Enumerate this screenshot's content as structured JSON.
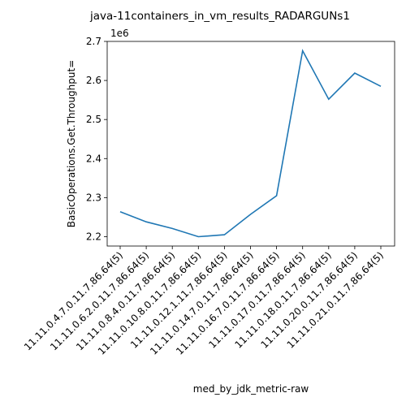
{
  "chart_data": {
    "type": "line",
    "title": "java-11containers_in_vm_results_RADARGUNs1",
    "xlabel": "med_by_jdk_metric-raw",
    "ylabel": "BasicOperations.Get.Throughput=",
    "y_multiplier_label": "1e6",
    "y_scale": 1000000,
    "categories": [
      "11.11.0.4.7.0.11.7.86.64(5)",
      "11.11.0.6.2.0.11.7.86.64(5)",
      "11.11.0.8.4.0.11.7.86.64(5)",
      "11.11.0.10.8.0.11.7.86.64(5)",
      "11.11.0.12.1.11.7.86.64(5)",
      "11.11.0.14.7.0.11.7.86.64(5)",
      "11.11.0.16.7.0.11.7.86.64(5)",
      "11.11.0.17.0.11.7.86.64(5)",
      "11.11.0.18.0.11.7.86.64(5)",
      "11.11.0.20.0.11.7.86.64(5)",
      "11.11.0.21.0.11.7.86.64(5)"
    ],
    "values": [
      2264000,
      2238000,
      2221000,
      2200000,
      2205000,
      2257000,
      2305000,
      2676000,
      2552000,
      2619000,
      2585000
    ],
    "ylim": [
      2176000,
      2700000
    ],
    "yticks": [
      2200000,
      2300000,
      2400000,
      2500000,
      2600000,
      2700000
    ],
    "ytick_labels": [
      "2.2",
      "2.3",
      "2.4",
      "2.5",
      "2.6",
      "2.7"
    ],
    "grid": false,
    "line_color": "#1f77b4"
  }
}
